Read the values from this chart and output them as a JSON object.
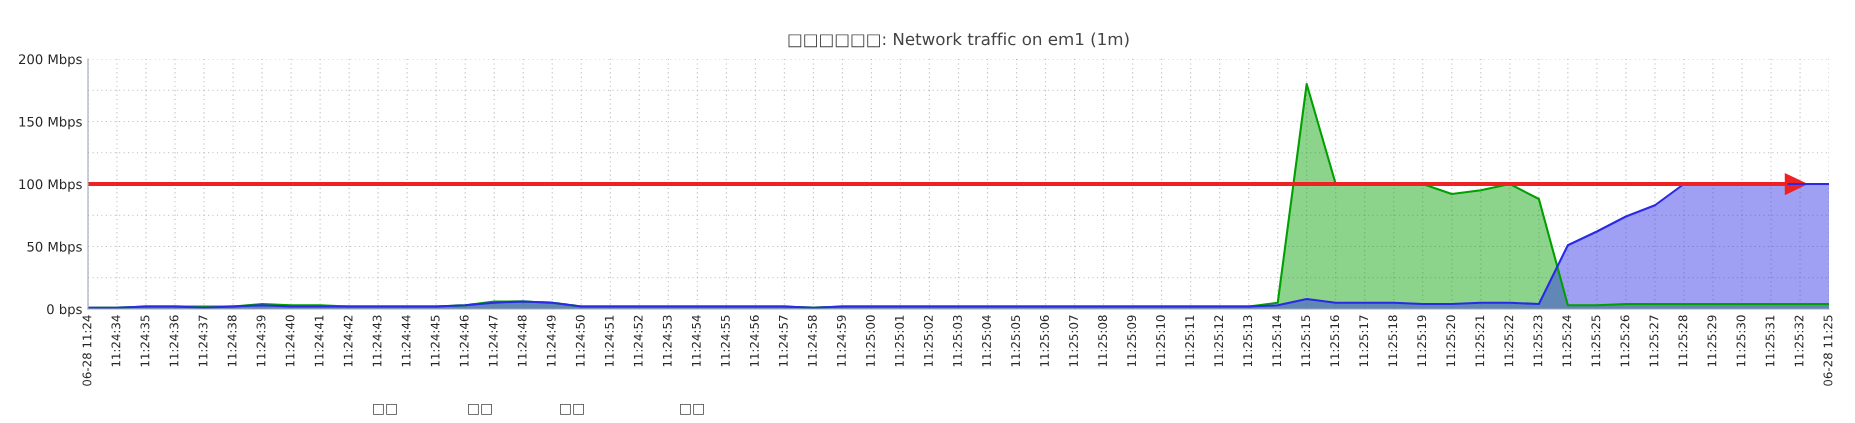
{
  "chart_data": {
    "type": "area",
    "title": "□□□□□□: Network traffic on em1 (1m)",
    "x": [
      11.409167,
      11.409444,
      11.409722,
      11.41,
      11.410278,
      11.410556,
      11.410833,
      11.411111,
      11.411389,
      11.411667,
      11.411944,
      11.412222,
      11.4125,
      11.412778,
      11.413056,
      11.413333,
      11.413611,
      11.413889,
      11.414167,
      11.414444,
      11.414722,
      11.415,
      11.415278,
      11.415556,
      11.415833,
      11.416111,
      11.416389,
      11.416667,
      11.416944,
      11.417222,
      11.4175,
      11.417778,
      11.418056,
      11.418333,
      11.418611,
      11.418889,
      11.419167,
      11.419444,
      11.419722,
      11.42,
      11.420278,
      11.420556,
      11.420833,
      11.421111,
      11.421389,
      11.421667,
      11.421944,
      11.422222,
      11.4225,
      11.422778,
      11.423056,
      11.423333,
      11.423611,
      11.423889,
      11.424167,
      11.424444,
      11.424722,
      11.425,
      11.425278,
      11.425556,
      11.425833
    ],
    "series": [
      {
        "color": "#00a000",
        "values": [
          1,
          1,
          2,
          2,
          2,
          2,
          4,
          3,
          3,
          2,
          2,
          2,
          2,
          3,
          6,
          6,
          5,
          2,
          2,
          2,
          2,
          2,
          2,
          2,
          2,
          1,
          2,
          2,
          2,
          2,
          2,
          2,
          2,
          2,
          2,
          2,
          2,
          2,
          2,
          2,
          2,
          5,
          180,
          100,
          100,
          100,
          100,
          92,
          95,
          100,
          88,
          3,
          3,
          4,
          4,
          4,
          4,
          4,
          4,
          4,
          4
        ]
      },
      {
        "color": "#2a2ae6",
        "values": [
          1,
          1,
          2,
          2,
          1,
          2,
          3,
          2,
          2,
          2,
          2,
          2,
          2,
          3,
          5,
          6,
          5,
          2,
          2,
          2,
          2,
          2,
          2,
          2,
          2,
          1,
          2,
          2,
          2,
          2,
          2,
          2,
          2,
          2,
          2,
          2,
          2,
          2,
          2,
          2,
          2,
          3,
          8,
          5,
          5,
          5,
          4,
          4,
          5,
          5,
          4,
          51,
          62,
          74,
          83,
          100,
          100,
          100,
          100,
          100,
          100
        ]
      }
    ],
    "xlim": [
      11.409167,
      11.425833
    ],
    "xticks": [
      {
        "value": 11.409167,
        "label": "06-28 11:24"
      },
      {
        "value": 11.409444,
        "label": "11:24:34"
      },
      {
        "value": 11.409722,
        "label": "11:24:35"
      },
      {
        "value": 11.41,
        "label": "11:24:36"
      },
      {
        "value": 11.410278,
        "label": "11:24:37"
      },
      {
        "value": 11.410556,
        "label": "11:24:38"
      },
      {
        "value": 11.410833,
        "label": "11:24:39"
      },
      {
        "value": 11.411111,
        "label": "11:24:40"
      },
      {
        "value": 11.411389,
        "label": "11:24:41"
      },
      {
        "value": 11.411667,
        "label": "11:24:42"
      },
      {
        "value": 11.411944,
        "label": "11:24:43"
      },
      {
        "value": 11.412222,
        "label": "11:24:44"
      },
      {
        "value": 11.4125,
        "label": "11:24:45"
      },
      {
        "value": 11.412778,
        "label": "11:24:46"
      },
      {
        "value": 11.413056,
        "label": "11:24:47"
      },
      {
        "value": 11.413333,
        "label": "11:24:48"
      },
      {
        "value": 11.413611,
        "label": "11:24:49"
      },
      {
        "value": 11.413889,
        "label": "11:24:50"
      },
      {
        "value": 11.414167,
        "label": "11:24:51"
      },
      {
        "value": 11.414444,
        "label": "11:24:52"
      },
      {
        "value": 11.414722,
        "label": "11:24:53"
      },
      {
        "value": 11.415,
        "label": "11:24:54"
      },
      {
        "value": 11.415278,
        "label": "11:24:55"
      },
      {
        "value": 11.415556,
        "label": "11:24:56"
      },
      {
        "value": 11.415833,
        "label": "11:24:57"
      },
      {
        "value": 11.416111,
        "label": "11:24:58"
      },
      {
        "value": 11.416389,
        "label": "11:24:59"
      },
      {
        "value": 11.416667,
        "label": "11:25:00"
      },
      {
        "value": 11.416944,
        "label": "11:25:01"
      },
      {
        "value": 11.417222,
        "label": "11:25:02"
      },
      {
        "value": 11.4175,
        "label": "11:25:03"
      },
      {
        "value": 11.417778,
        "label": "11:25:04"
      },
      {
        "value": 11.418056,
        "label": "11:25:05"
      },
      {
        "value": 11.418333,
        "label": "11:25:06"
      },
      {
        "value": 11.418611,
        "label": "11:25:07"
      },
      {
        "value": 11.418889,
        "label": "11:25:08"
      },
      {
        "value": 11.419167,
        "label": "11:25:09"
      },
      {
        "value": 11.419444,
        "label": "11:25:10"
      },
      {
        "value": 11.419722,
        "label": "11:25:11"
      },
      {
        "value": 11.42,
        "label": "11:25:12"
      },
      {
        "value": 11.420278,
        "label": "11:25:13"
      },
      {
        "value": 11.420556,
        "label": "11:25:14"
      },
      {
        "value": 11.420833,
        "label": "11:25:15"
      },
      {
        "value": 11.421111,
        "label": "11:25:16"
      },
      {
        "value": 11.421389,
        "label": "11:25:17"
      },
      {
        "value": 11.421667,
        "label": "11:25:18"
      },
      {
        "value": 11.421944,
        "label": "11:25:19"
      },
      {
        "value": 11.422222,
        "label": "11:25:20"
      },
      {
        "value": 11.4225,
        "label": "11:25:21"
      },
      {
        "value": 11.422778,
        "label": "11:25:22"
      },
      {
        "value": 11.423056,
        "label": "11:25:23"
      },
      {
        "value": 11.423333,
        "label": "11:25:24"
      },
      {
        "value": 11.423611,
        "label": "11:25:25"
      },
      {
        "value": 11.423889,
        "label": "11:25:26"
      },
      {
        "value": 11.424167,
        "label": "11:25:27"
      },
      {
        "value": 11.424444,
        "label": "11:25:28"
      },
      {
        "value": 11.424722,
        "label": "11:25:29"
      },
      {
        "value": 11.425,
        "label": "11:25:30"
      },
      {
        "value": 11.425278,
        "label": "11:25:31"
      },
      {
        "value": 11.425556,
        "label": "11:25:32"
      },
      {
        "value": 11.425833,
        "label": "06-28 11:25"
      }
    ],
    "ylim": [
      0,
      200
    ],
    "yticks": [
      {
        "value": 0,
        "label": "0 bps"
      },
      {
        "value": 25,
        "label": null
      },
      {
        "value": 50,
        "label": "50 Mbps"
      },
      {
        "value": 75,
        "label": null
      },
      {
        "value": 100,
        "label": "100 Mbps"
      },
      {
        "value": 125,
        "label": null
      },
      {
        "value": 150,
        "label": "150 Mbps"
      },
      {
        "value": 175,
        "label": null
      },
      {
        "value": 200,
        "label": "200 Mbps"
      }
    ],
    "grid": true,
    "ref_lines": [
      {
        "axis": "y",
        "value": 100,
        "color": "#ee2222"
      }
    ],
    "annotations": [
      "□□",
      "□□",
      "□□",
      "□□"
    ]
  }
}
